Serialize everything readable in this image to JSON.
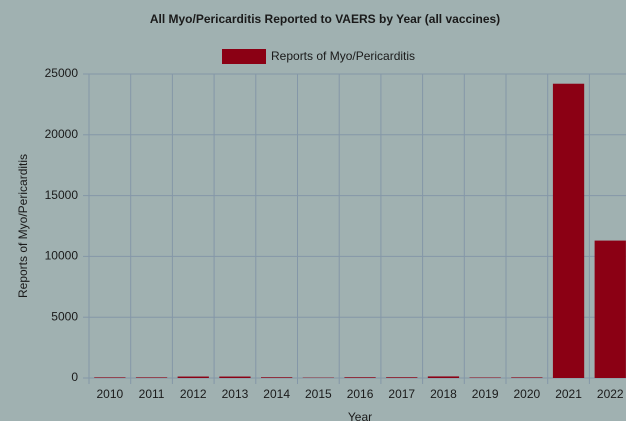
{
  "chart_data": {
    "type": "bar",
    "title": "All Myo/Pericarditis Reported to VAERS by Year (all vaccines)",
    "xlabel": "Year",
    "ylabel": "Reports of Myo/Pericarditis",
    "categories": [
      "2010",
      "2011",
      "2012",
      "2013",
      "2014",
      "2015",
      "2016",
      "2017",
      "2018",
      "2019",
      "2020",
      "2021",
      "2022"
    ],
    "series": [
      {
        "name": "Reports of Myo/Pericarditis",
        "color": "#8b0014",
        "values": [
          50,
          50,
          120,
          120,
          60,
          30,
          60,
          60,
          130,
          40,
          50,
          24200,
          11300
        ]
      }
    ],
    "ylim": [
      0,
      25000
    ],
    "yticks": [
      0,
      5000,
      10000,
      15000,
      20000,
      25000
    ],
    "grid": true,
    "legend": "top"
  }
}
